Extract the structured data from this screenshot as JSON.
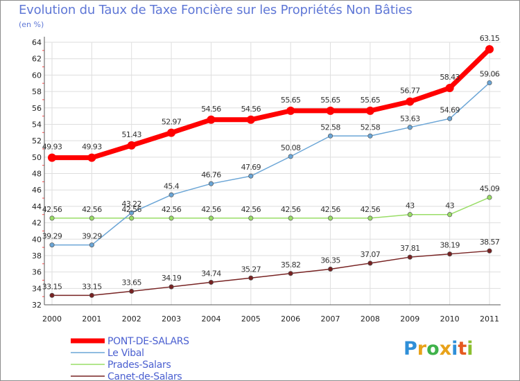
{
  "title": "Evolution du Taux de Taxe Foncière sur les Propriétés Non Bâties",
  "unit_label": "(en %)",
  "logo": {
    "letters": [
      "P",
      "r",
      "o",
      "x",
      "i",
      "t",
      "i"
    ],
    "colors": [
      "#2f8fd8",
      "#e8a21a",
      "#3fb24a",
      "#e8a21a",
      "#2f8fd8",
      "#e55a1f",
      "#8bbf2f"
    ]
  },
  "chart_data": {
    "type": "line",
    "x": [
      2000,
      2001,
      2002,
      2003,
      2004,
      2005,
      2006,
      2007,
      2008,
      2009,
      2010,
      2011
    ],
    "ylim": [
      32,
      64
    ],
    "yticks": [
      32,
      34,
      36,
      38,
      40,
      42,
      44,
      46,
      48,
      50,
      52,
      54,
      56,
      58,
      60,
      62,
      64
    ],
    "grid": true,
    "legend": "bottom-left",
    "series": [
      {
        "name": "PONT-DE-SALARS",
        "color": "#ff0000",
        "values": [
          49.93,
          49.93,
          51.43,
          52.97,
          54.56,
          54.56,
          55.65,
          55.65,
          55.65,
          56.77,
          58.43,
          63.15
        ],
        "labels": [
          "49.93",
          "49.93",
          "51.43",
          "52.97",
          "54.56",
          "54.56",
          "55.65",
          "55.65",
          "55.65",
          "56.77",
          "58.43",
          "63.15"
        ]
      },
      {
        "name": "Le Vibal",
        "color": "#6aa5d6",
        "values": [
          39.29,
          39.29,
          43.22,
          45.4,
          46.76,
          47.69,
          50.08,
          52.58,
          52.58,
          53.63,
          54.69,
          59.06
        ],
        "labels": [
          "39.29",
          "39.29",
          "43.22",
          "45.4",
          "46.76",
          "47.69",
          "50.08",
          "52.58",
          "52.58",
          "53.63",
          "54.69",
          "59.06"
        ]
      },
      {
        "name": "Prades-Salars",
        "color": "#99dd66",
        "values": [
          42.56,
          42.56,
          42.56,
          42.56,
          42.56,
          42.56,
          42.56,
          42.56,
          42.56,
          43,
          43,
          45.09
        ],
        "labels": [
          "42.56",
          "42.56",
          "42.56",
          "42.56",
          "42.56",
          "42.56",
          "42.56",
          "42.56",
          "42.56",
          "43",
          "43",
          "45.09"
        ]
      },
      {
        "name": "Canet-de-Salars",
        "color": "#772222",
        "values": [
          33.15,
          33.15,
          33.65,
          34.19,
          34.74,
          35.27,
          35.82,
          36.35,
          37.07,
          37.81,
          38.19,
          38.57
        ],
        "labels": [
          "33.15",
          "33.15",
          "33.65",
          "34.19",
          "34.74",
          "35.27",
          "35.82",
          "36.35",
          "37.07",
          "37.81",
          "38.19",
          "38.57"
        ]
      }
    ]
  }
}
